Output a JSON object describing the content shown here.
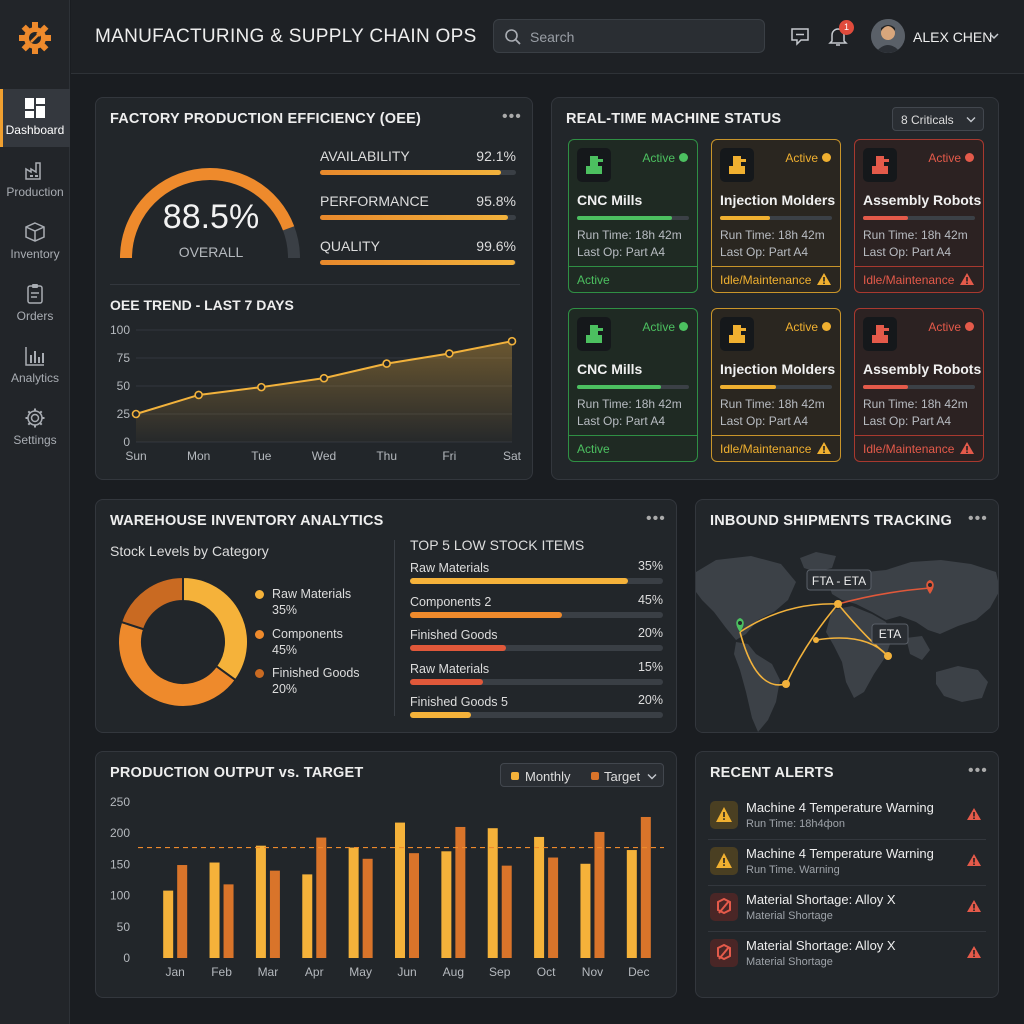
{
  "header": {
    "title": "MANUFACTURING & SUPPLY CHAIN OPS",
    "search_placeholder": "Search",
    "notification_count": "1",
    "user_name": "ALEX CHEN"
  },
  "sidebar": {
    "items": [
      {
        "label": "Dashboard",
        "icon": "dashboard-icon"
      },
      {
        "label": "Production",
        "icon": "factory-icon"
      },
      {
        "label": "Inventory",
        "icon": "box-icon"
      },
      {
        "label": "Orders",
        "icon": "clipboard-icon"
      },
      {
        "label": "Analytics",
        "icon": "bar-chart-icon"
      },
      {
        "label": "Settings",
        "icon": "gear-icon"
      }
    ]
  },
  "oee": {
    "title": "FACTORY PRODUCTION EFFICIENCY (OEE)",
    "overall_value": "88.5%",
    "overall_fraction": 0.885,
    "overall_label": "OVERALL",
    "metrics": [
      {
        "label": "AVAILABILITY",
        "value": "92.1%",
        "fraction": 0.921
      },
      {
        "label": "PERFORMANCE",
        "value": "95.8%",
        "fraction": 0.958
      },
      {
        "label": "QUALITY",
        "value": "99.6%",
        "fraction": 0.996
      }
    ],
    "trend_title": "OEE TREND - LAST 7 DAYS"
  },
  "machines": {
    "title": "REAL-TIME MACHINE STATUS",
    "filter_label": "8 Criticals",
    "run_time": "Run Time: 18h 42m",
    "last_op": "Last Op: Part A4",
    "cards": [
      {
        "name": "CNC Mills",
        "status": "Active",
        "footer": "Active",
        "variant": "green",
        "progress": 0.85
      },
      {
        "name": "Injection Molders",
        "status": "Active",
        "footer": "Idle/Maintenance",
        "variant": "amber",
        "progress": 0.45
      },
      {
        "name": "Assembly Robots",
        "status": "Active",
        "footer": "Idle/Maintenance",
        "variant": "red",
        "progress": 0.4
      },
      {
        "name": "CNC Mills",
        "status": "Active",
        "footer": "Active",
        "variant": "green",
        "progress": 0.75
      },
      {
        "name": "Injection Molders",
        "status": "Active",
        "footer": "Idle/Maintenance",
        "variant": "amber",
        "progress": 0.5
      },
      {
        "name": "Assembly Robots",
        "status": "Active",
        "footer": "Idle/Maintenance",
        "variant": "red",
        "progress": 0.4
      }
    ]
  },
  "inventory": {
    "title": "WAREHOUSE INVENTORY ANALYTICS",
    "donut_title": "Stock Levels by Category",
    "legend": [
      {
        "name": "Raw Materials",
        "pct": "35%",
        "color": "#f5b23a"
      },
      {
        "name": "Components",
        "pct": "45%",
        "color": "#ee8a2c"
      },
      {
        "name": "Finished Goods",
        "pct": "20%",
        "color": "#c96a22"
      }
    ],
    "low_stock_title": "TOP 5 LOW STOCK ITEMS",
    "low_stock": [
      {
        "name": "Raw Materials",
        "pct": "35%",
        "color": "#f5b23a"
      },
      {
        "name": "Components 2",
        "pct": "45%",
        "color": "#ee8a2c"
      },
      {
        "name": "Finished Goods",
        "pct": "20%",
        "color": "#e0583a"
      },
      {
        "name": "Raw Materials",
        "pct": "15%",
        "color": "#e0583a"
      },
      {
        "name": "Finished Goods 5",
        "pct": "20%",
        "color": "#f5b23a"
      }
    ]
  },
  "shipments": {
    "title": "INBOUND SHIPMENTS TRACKING",
    "label_1": "FTA - ETA",
    "label_2": "ETA"
  },
  "output": {
    "title": "PRODUCTION OUTPUT vs. TARGET",
    "legend_1": "Monthly",
    "legend_2": "Target"
  },
  "alerts": {
    "title": "RECENT ALERTS",
    "items": [
      {
        "title": "Machine 4 Temperature Warning",
        "sub": "Run Time: 18h4фon",
        "kind": "warning"
      },
      {
        "title": "Machine 4 Temperature Warning",
        "sub": "Run Time. Warning",
        "kind": "warning"
      },
      {
        "title": "Material Shortage: Alloy X",
        "sub": "Material Shortage",
        "kind": "shortage"
      },
      {
        "title": "Material Shortage: Alloy X",
        "sub": "Material Shortage",
        "kind": "shortage"
      }
    ]
  },
  "chart_data": [
    {
      "type": "line",
      "title": "OEE TREND - LAST 7 DAYS",
      "categories": [
        "Sun",
        "Mon",
        "Tue",
        "Wed",
        "Thu",
        "Fri",
        "Sat"
      ],
      "values": [
        25,
        42,
        49,
        57,
        70,
        79,
        90
      ],
      "ylim": [
        0,
        100
      ],
      "yticks": [
        "0",
        "25",
        "50",
        "75",
        "100"
      ],
      "color": "#f2b23c",
      "grid": true
    },
    {
      "type": "pie",
      "title": "Stock Levels by Category",
      "categories": [
        "Raw Materials",
        "Components",
        "Finished Goods"
      ],
      "values": [
        35,
        45,
        20
      ],
      "colors": [
        "#f5b23a",
        "#ee8a2c",
        "#c96a22"
      ]
    },
    {
      "type": "bar",
      "title": "PRODUCTION OUTPUT vs. TARGET",
      "categories": [
        "Jan",
        "Feb",
        "Mar",
        "Apr",
        "May",
        "Jun",
        "Aug",
        "Sep",
        "Oct",
        "Nov",
        "Dec"
      ],
      "series": [
        {
          "name": "Monthly",
          "values": [
            108,
            153,
            180,
            134,
            177,
            217,
            171,
            208,
            194,
            151,
            173
          ],
          "color": "#f5b23a"
        },
        {
          "name": "Target",
          "values": [
            149,
            118,
            140,
            193,
            159,
            168,
            210,
            148,
            161,
            202,
            226
          ],
          "color": "#d9742a"
        }
      ],
      "target_line": 177,
      "ylim": [
        0,
        250
      ],
      "yticks": [
        "0",
        "50",
        "100",
        "150",
        "200",
        "250"
      ],
      "legend": "top-right"
    }
  ]
}
